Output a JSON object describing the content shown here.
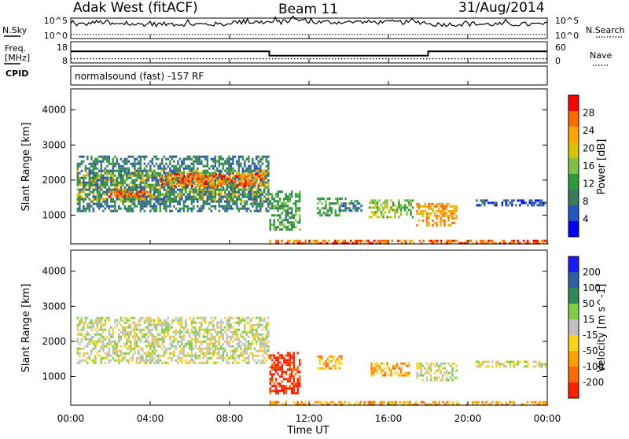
{
  "header": {
    "station": "Adak West (fitACF)",
    "beam": "Beam 11",
    "date": "31/Aug/2014"
  },
  "panel_labels": {
    "nsky": "N.Sky",
    "nsearch": "N.Search",
    "freq": "Freq.",
    "freq_unit": "[MHz]",
    "cpid": "CPID",
    "nave": "Nave",
    "cpid_text": "normalsound (fast) -157 RF",
    "noise_left_top": "10^5",
    "noise_left_bot": "10^0",
    "noise_right_top": "10^5",
    "noise_right_bot": "10^0",
    "freq_top": "18",
    "freq_bot": "8",
    "nave_top": "60",
    "nave_bot": "0"
  },
  "xaxis": {
    "title": "Time UT",
    "ticks": [
      "00:00",
      "04:00",
      "08:00",
      "12:00",
      "16:00",
      "20:00",
      "00:00"
    ]
  },
  "colors": {
    "power": [
      "#0000ff",
      "#2455c4",
      "#3b7a5a",
      "#2d9a3a",
      "#7cc24a",
      "#d8c400",
      "#ffa500",
      "#ff6a00",
      "#ff0000"
    ],
    "velocity": [
      "#1a1aff",
      "#3060a0",
      "#2e8b57",
      "#7fcf3f",
      "#c0c0c0",
      "#ffd21a",
      "#ffa000",
      "#ff6a00",
      "#ff2000"
    ]
  },
  "chart_data": [
    {
      "type": "line",
      "name": "noise-panel",
      "ylabel_left": "N.Sky",
      "ylabel_right": "N.Search",
      "x_hours": [
        0,
        1,
        2,
        3,
        4,
        5,
        6,
        7,
        8,
        9,
        10,
        11,
        12,
        13,
        14,
        15,
        16,
        17,
        18,
        19,
        20,
        21,
        22,
        23,
        24
      ],
      "series": [
        {
          "name": "N.Sky",
          "values": [
            0.7,
            0.8,
            0.7,
            0.7,
            0.7,
            0.7,
            0.7,
            0.7,
            0.8,
            0.8,
            0.8,
            0.9,
            0.8,
            0.8,
            0.8,
            0.8,
            0.8,
            0.8,
            0.7,
            0.7,
            0.7,
            0.7,
            0.7,
            0.7,
            0.7
          ]
        },
        {
          "name": "N.Search",
          "values": [
            0.2,
            0.2,
            0.2,
            0.2,
            0.2,
            0.2,
            0.2,
            0.2,
            0.2,
            0.2,
            0.2,
            0.2,
            0.2,
            0.2,
            0.2,
            0.2,
            0.2,
            0.2,
            0.2,
            0.2,
            0.2,
            0.2,
            0.2,
            0.2,
            0.2
          ]
        }
      ]
    },
    {
      "type": "line",
      "name": "freq-panel",
      "ylabel_left": "Freq. [MHz]",
      "ylabel_right": "Nave",
      "ylim_left": [
        8,
        18
      ],
      "ylim_right": [
        0,
        60
      ],
      "series": [
        {
          "name": "Freq.",
          "x_hours": [
            0,
            10,
            10,
            18,
            18,
            24
          ],
          "values": [
            13.5,
            13.5,
            11.4,
            11.4,
            13.5,
            13.5
          ]
        },
        {
          "name": "Nave",
          "x_hours": [
            0,
            24
          ],
          "values": [
            12,
            12
          ]
        }
      ]
    },
    {
      "type": "heatmap",
      "name": "power-panel",
      "ylabel": "Slant Range [km]",
      "ylim": [
        180,
        4600
      ],
      "yticks": [
        "1000",
        "2000",
        "3000",
        "4000"
      ],
      "colorbar_label": "Power [dB]",
      "colorbar_ticks": [
        "4",
        "8",
        "12",
        "16",
        "20",
        "24",
        "28"
      ],
      "xlim_hours": [
        0,
        24
      ],
      "regions": [
        {
          "t0": 0.3,
          "t1": 10.0,
          "r0": 1400,
          "r1": 2300,
          "level": 5
        },
        {
          "t0": 0.3,
          "t1": 10.0,
          "r0": 1150,
          "r1": 2700,
          "level": 2
        },
        {
          "t0": 1.9,
          "t1": 4.0,
          "r0": 1500,
          "r1": 1700,
          "level": 7
        },
        {
          "t0": 4.5,
          "t1": 9.8,
          "r0": 1800,
          "r1": 2200,
          "level": 7
        },
        {
          "t0": 10.0,
          "t1": 11.5,
          "r0": 600,
          "r1": 1700,
          "level": 3
        },
        {
          "t0": 12.4,
          "t1": 13.6,
          "r0": 1000,
          "r1": 1500,
          "level": 3
        },
        {
          "t0": 13.4,
          "t1": 14.6,
          "r0": 1100,
          "r1": 1500,
          "level": 2
        },
        {
          "t0": 15.0,
          "t1": 17.2,
          "r0": 950,
          "r1": 1450,
          "level": 4
        },
        {
          "t0": 17.4,
          "t1": 19.4,
          "r0": 700,
          "r1": 1350,
          "level": 6
        },
        {
          "t0": 20.4,
          "t1": 23.9,
          "r0": 1250,
          "r1": 1450,
          "level": 1
        },
        {
          "t0": 10.0,
          "t1": 24.0,
          "r0": 180,
          "r1": 300,
          "level": 7
        }
      ]
    },
    {
      "type": "heatmap",
      "name": "velocity-panel",
      "ylabel": "Slant Range [km]",
      "ylim": [
        180,
        4600
      ],
      "yticks": [
        "1000",
        "2000",
        "3000",
        "4000"
      ],
      "colorbar_label": "Velocity [m s^-1]",
      "colorbar_ticks": [
        "200",
        "100",
        "50",
        "15",
        "-15",
        "-50",
        "-100",
        "-200"
      ],
      "xlim_hours": [
        0,
        24
      ],
      "regions": [
        {
          "t0": 0.3,
          "t1": 10.0,
          "r0": 1400,
          "r1": 2700,
          "level": 4
        },
        {
          "t0": 10.0,
          "t1": 11.5,
          "r0": 500,
          "r1": 1700,
          "level": 8
        },
        {
          "t0": 12.4,
          "t1": 13.6,
          "r0": 1200,
          "r1": 1600,
          "level": 6
        },
        {
          "t0": 15.0,
          "t1": 17.0,
          "r0": 1000,
          "r1": 1400,
          "level": 6
        },
        {
          "t0": 17.4,
          "t1": 19.4,
          "r0": 900,
          "r1": 1400,
          "level": 4
        },
        {
          "t0": 20.4,
          "t1": 23.9,
          "r0": 1250,
          "r1": 1450,
          "level": 4
        },
        {
          "t0": 10.0,
          "t1": 24.0,
          "r0": 180,
          "r1": 300,
          "level": 6
        }
      ]
    }
  ]
}
